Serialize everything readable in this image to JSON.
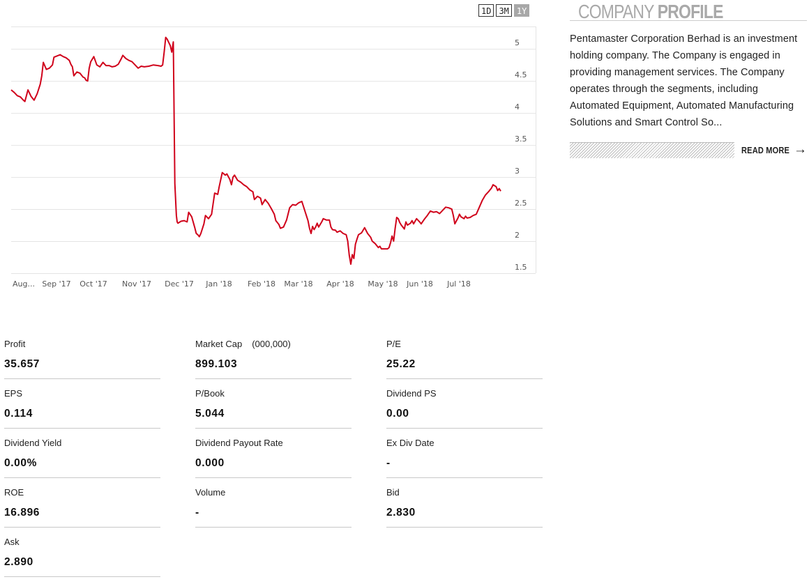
{
  "range_buttons": [
    {
      "label": "1D",
      "active": false
    },
    {
      "label": "3M",
      "active": false
    },
    {
      "label": "1Y",
      "active": true
    }
  ],
  "chart_data": {
    "type": "line",
    "line_color": "#d0021b",
    "ylim": [
      1.5,
      5.35
    ],
    "y_ticks": [
      "1.5",
      "2",
      "2.5",
      "3",
      "3.5",
      "4",
      "4.5",
      "5"
    ],
    "x_ticks": [
      "Aug...",
      "Sep '17",
      "Oct '17",
      "Nov '17",
      "Dec '17",
      "Jan '18",
      "Feb '18",
      "Mar '18",
      "Apr '18",
      "May '18",
      "Jun '18",
      "Jul '18"
    ],
    "series": [
      {
        "points": [
          [
            0,
            4.36
          ],
          [
            2,
            4.32
          ],
          [
            4,
            4.27
          ],
          [
            6,
            4.25
          ],
          [
            8,
            4.2
          ],
          [
            9,
            4.18
          ],
          [
            11,
            4.36
          ],
          [
            13,
            4.26
          ],
          [
            15,
            4.2
          ],
          [
            17,
            4.3
          ],
          [
            19,
            4.45
          ],
          [
            20,
            4.58
          ],
          [
            21,
            4.79
          ],
          [
            23,
            4.68
          ],
          [
            25,
            4.7
          ],
          [
            27,
            4.75
          ],
          [
            28,
            4.87
          ],
          [
            30,
            4.89
          ],
          [
            32,
            4.91
          ],
          [
            34,
            4.88
          ],
          [
            36,
            4.86
          ],
          [
            38,
            4.82
          ],
          [
            39,
            4.76
          ],
          [
            40,
            4.72
          ],
          [
            41,
            4.58
          ],
          [
            43,
            4.64
          ],
          [
            45,
            4.62
          ],
          [
            47,
            4.56
          ],
          [
            48,
            4.55
          ],
          [
            49,
            4.51
          ],
          [
            50,
            4.5
          ],
          [
            51,
            4.7
          ],
          [
            52,
            4.8
          ],
          [
            54,
            4.88
          ],
          [
            56,
            4.75
          ],
          [
            58,
            4.72
          ],
          [
            60,
            4.79
          ],
          [
            62,
            4.74
          ],
          [
            64,
            4.74
          ],
          [
            66,
            4.72
          ],
          [
            68,
            4.73
          ],
          [
            70,
            4.76
          ],
          [
            72,
            4.85
          ],
          [
            73,
            4.9
          ],
          [
            75,
            4.85
          ],
          [
            77,
            4.82
          ],
          [
            79,
            4.8
          ],
          [
            81,
            4.75
          ],
          [
            83,
            4.7
          ],
          [
            85,
            4.73
          ],
          [
            87,
            4.72
          ],
          [
            90,
            4.73
          ],
          [
            93,
            4.75
          ],
          [
            96,
            4.74
          ],
          [
            98,
            4.73
          ],
          [
            99,
            4.75
          ],
          [
            100,
            4.95
          ],
          [
            101,
            5.18
          ],
          [
            102,
            5.15
          ],
          [
            104,
            5.05
          ],
          [
            105,
            4.95
          ],
          [
            106,
            5.11
          ],
          [
            107,
            2.9
          ],
          [
            108,
            2.4
          ],
          [
            108.5,
            2.3
          ],
          [
            109,
            2.28
          ],
          [
            111,
            2.31
          ],
          [
            113,
            2.32
          ],
          [
            114,
            2.31
          ],
          [
            115,
            2.3
          ],
          [
            116,
            2.45
          ],
          [
            118,
            2.38
          ],
          [
            120,
            2.21
          ],
          [
            121,
            2.12
          ],
          [
            122,
            2.1
          ],
          [
            123,
            2.07
          ],
          [
            124,
            2.12
          ],
          [
            126,
            2.27
          ],
          [
            127,
            2.4
          ],
          [
            129,
            2.35
          ],
          [
            131,
            2.42
          ],
          [
            133,
            2.75
          ],
          [
            135,
            2.73
          ],
          [
            136,
            2.85
          ],
          [
            138,
            3.07
          ],
          [
            140,
            3.03
          ],
          [
            141,
            3.05
          ],
          [
            143,
            2.96
          ],
          [
            144,
            2.88
          ],
          [
            145,
            3.0
          ],
          [
            146,
            3.03
          ],
          [
            148,
            2.95
          ],
          [
            150,
            2.92
          ],
          [
            152,
            2.88
          ],
          [
            154,
            2.85
          ],
          [
            156,
            2.8
          ],
          [
            158,
            2.77
          ],
          [
            159,
            2.65
          ],
          [
            161,
            2.7
          ],
          [
            163,
            2.67
          ],
          [
            164,
            2.57
          ],
          [
            166,
            2.65
          ],
          [
            168,
            2.59
          ],
          [
            170,
            2.51
          ],
          [
            172,
            2.42
          ],
          [
            173,
            2.32
          ],
          [
            175,
            2.26
          ],
          [
            176,
            2.2
          ],
          [
            178,
            2.22
          ],
          [
            180,
            2.33
          ],
          [
            182,
            2.52
          ],
          [
            184,
            2.57
          ],
          [
            186,
            2.56
          ],
          [
            188,
            2.6
          ],
          [
            190,
            2.62
          ],
          [
            192,
            2.47
          ],
          [
            194,
            2.32
          ],
          [
            195,
            2.2
          ],
          [
            196,
            2.12
          ],
          [
            197,
            2.23
          ],
          [
            198,
            2.18
          ],
          [
            199,
            2.22
          ],
          [
            200,
            2.28
          ],
          [
            201,
            2.22
          ],
          [
            203,
            2.3
          ],
          [
            204,
            2.35
          ],
          [
            206,
            2.33
          ],
          [
            208,
            2.33
          ],
          [
            209,
            2.22
          ],
          [
            210,
            2.18
          ],
          [
            212,
            2.17
          ],
          [
            213,
            2.14
          ],
          [
            215,
            2.16
          ],
          [
            217,
            2.12
          ],
          [
            219,
            2.1
          ],
          [
            220,
            2.0
          ],
          [
            221,
            1.78
          ],
          [
            222,
            1.64
          ],
          [
            223,
            1.79
          ],
          [
            224,
            1.73
          ],
          [
            225,
            1.95
          ],
          [
            226,
            2.03
          ],
          [
            227,
            2.1
          ],
          [
            229,
            2.13
          ],
          [
            231,
            2.21
          ],
          [
            233,
            2.12
          ],
          [
            235,
            2.06
          ],
          [
            236,
            2.0
          ],
          [
            238,
            1.96
          ],
          [
            240,
            1.9
          ],
          [
            241,
            1.92
          ],
          [
            242,
            1.88
          ],
          [
            244,
            1.88
          ],
          [
            246,
            1.88
          ],
          [
            247,
            1.9
          ],
          [
            248,
            1.98
          ],
          [
            249,
            2.08
          ],
          [
            250,
            2.0
          ],
          [
            251,
            2.2
          ],
          [
            252,
            2.37
          ],
          [
            253,
            2.35
          ],
          [
            254,
            2.29
          ],
          [
            255,
            2.25
          ],
          [
            257,
            2.19
          ],
          [
            258,
            2.3
          ],
          [
            259,
            2.25
          ],
          [
            261,
            2.28
          ],
          [
            262,
            2.32
          ],
          [
            263,
            2.27
          ],
          [
            265,
            2.35
          ],
          [
            267,
            2.3
          ],
          [
            268,
            2.27
          ],
          [
            270,
            2.34
          ],
          [
            272,
            2.4
          ],
          [
            274,
            2.47
          ],
          [
            276,
            2.45
          ],
          [
            278,
            2.46
          ],
          [
            280,
            2.43
          ],
          [
            282,
            2.48
          ],
          [
            284,
            2.53
          ],
          [
            286,
            2.52
          ],
          [
            288,
            2.5
          ],
          [
            289,
            2.4
          ],
          [
            290,
            2.27
          ],
          [
            292,
            2.36
          ],
          [
            293,
            2.42
          ],
          [
            294,
            2.38
          ],
          [
            296,
            2.35
          ],
          [
            297,
            2.39
          ],
          [
            298,
            2.36
          ],
          [
            300,
            2.37
          ],
          [
            302,
            2.4
          ],
          [
            304,
            2.42
          ],
          [
            306,
            2.53
          ],
          [
            308,
            2.64
          ],
          [
            310,
            2.72
          ],
          [
            312,
            2.77
          ],
          [
            314,
            2.83
          ],
          [
            315,
            2.88
          ],
          [
            317,
            2.85
          ],
          [
            318,
            2.79
          ],
          [
            319,
            2.82
          ],
          [
            320,
            2.78
          ]
        ]
      }
    ]
  },
  "profile": {
    "title_light": "COMPANY ",
    "title_bold": "PROFILE",
    "description": "Pentamaster Corporation Berhad is an investment holding company. The Company is engaged in providing management services. The Company operates through the segments, including Automated Equipment, Automated Manufacturing Solutions and Smart Control So...",
    "read_more": "READ MORE"
  },
  "stats": [
    {
      "label": "Profit",
      "unit": "",
      "value": "35.657"
    },
    {
      "label": "Market Cap",
      "unit": "(000,000)",
      "value": "899.103"
    },
    {
      "label": "P/E",
      "unit": "",
      "value": "25.22"
    },
    {
      "label": "EPS",
      "unit": "",
      "value": "0.114"
    },
    {
      "label": "P/Book",
      "unit": "",
      "value": "5.044"
    },
    {
      "label": "Dividend PS",
      "unit": "",
      "value": "0.00"
    },
    {
      "label": "Dividend Yield",
      "unit": "",
      "value": "0.00%"
    },
    {
      "label": "Dividend Payout Rate",
      "unit": "",
      "value": "0.000"
    },
    {
      "label": "Ex Div Date",
      "unit": "",
      "value": "-"
    },
    {
      "label": "ROE",
      "unit": "",
      "value": "16.896"
    },
    {
      "label": "Volume",
      "unit": "",
      "value": "-"
    },
    {
      "label": "Bid",
      "unit": "",
      "value": "2.830"
    },
    {
      "label": "Ask",
      "unit": "",
      "value": "2.890"
    }
  ]
}
